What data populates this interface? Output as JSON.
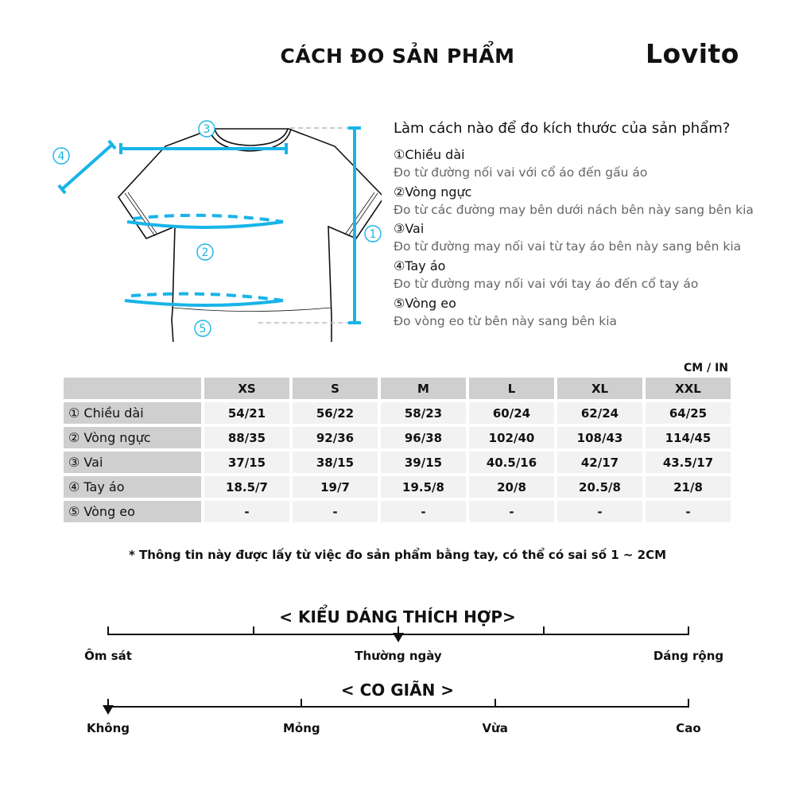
{
  "header": {
    "title": "CÁCH ĐO SẢN PHẨM",
    "logo": "Lovito"
  },
  "accent_color": "#18b4e8",
  "diagram": {
    "labels": [
      "①",
      "②",
      "③",
      "④",
      "⑤"
    ]
  },
  "instructions": {
    "title": "Làm cách nào để đo kích thước của sản phẩm?",
    "items": [
      {
        "name": "①Chiều dài",
        "desc": "Đo từ đường nối vai với cổ áo đến gấu áo"
      },
      {
        "name": "②Vòng ngực",
        "desc": "Đo từ các đường may bên dưới nách bên này sang bên kia"
      },
      {
        "name": "③Vai",
        "desc": "Đo từ đường may nối vai từ tay áo bên này sang bên kia"
      },
      {
        "name": "④Tay áo",
        "desc": "Đo từ đường may nối vai với tay áo đến cổ tay áo"
      },
      {
        "name": "⑤Vòng eo",
        "desc": "Đo vòng eo từ bên này sang bên kia"
      }
    ]
  },
  "table": {
    "unit": "CM / IN",
    "columns": [
      "XS",
      "S",
      "M",
      "L",
      "XL",
      "XXL"
    ],
    "rows": [
      {
        "label": "① Chiều dài",
        "values": [
          "54/21",
          "56/22",
          "58/23",
          "60/24",
          "62/24",
          "64/25"
        ]
      },
      {
        "label": "② Vòng ngực",
        "values": [
          "88/35",
          "92/36",
          "96/38",
          "102/40",
          "108/43",
          "114/45"
        ]
      },
      {
        "label": "③ Vai",
        "values": [
          "37/15",
          "38/15",
          "39/15",
          "40.5/16",
          "42/17",
          "43.5/17"
        ]
      },
      {
        "label": "④ Tay áo",
        "values": [
          "18.5/7",
          "19/7",
          "19.5/8",
          "20/8",
          "20.5/8",
          "21/8"
        ]
      },
      {
        "label": "⑤ Vòng eo",
        "values": [
          "-",
          "-",
          "-",
          "-",
          "-",
          "-"
        ]
      }
    ]
  },
  "note": "* Thông tin này được lấy từ việc đo sản phẩm bằng tay, có thể có sai số 1 ~ 2CM",
  "fit_scale": {
    "title": "< KIỂU DÁNG THÍCH HỢP>",
    "labels": [
      "Ôm sát",
      "Thường ngày",
      "Dáng rộng"
    ],
    "selected": "Thường ngày",
    "selected_position": 0.5
  },
  "stretch_scale": {
    "title": "< CO GIÃN >",
    "labels": [
      "Không",
      "Mỏng",
      "Vừa",
      "Cao"
    ],
    "selected": "Không",
    "selected_position": 0
  }
}
